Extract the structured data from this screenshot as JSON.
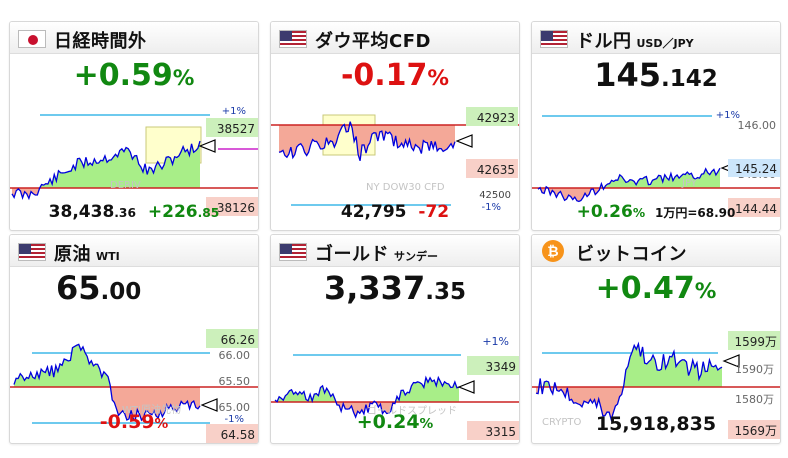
{
  "colors": {
    "up": "#118811",
    "down": "#dd1111",
    "line": "#0000dd",
    "fill_up": "#a8ee88",
    "fill_down": "#f4a898",
    "baseline": "#cc2222",
    "band": "#3fb8e8",
    "tag_green": "#ccf0bb",
    "tag_pink": "#f8d0c8",
    "tag_blue": "#cce6fb",
    "magenta_marker": "#cc22cc",
    "highlight_box": "#ffffcc"
  },
  "cards": [
    {
      "id": "nikkei",
      "title": "日経時間外",
      "subtitle": "",
      "flag_icon": "japan-flag-icon",
      "big": {
        "main": "+0.59",
        "unit": "%"
      },
      "price": {
        "main": "38,438",
        "dec": ".36"
      },
      "change": {
        "main": "+226",
        "dec": ".85"
      },
      "labels": {
        "band_pct": "+1%",
        "upper": "38527",
        "lower": "38126",
        "watermark": "DERIV"
      }
    },
    {
      "id": "dow",
      "title": "ダウ平均CFD",
      "subtitle": "",
      "flag_icon": "us-flag-icon",
      "big": {
        "main": "-0.17",
        "unit": "%"
      },
      "price": {
        "main": "42,795"
      },
      "change": {
        "main": "-72"
      },
      "labels": {
        "upper": "42923",
        "lower": "42635",
        "band_value": "42500",
        "band_pct": "-1%",
        "watermark": "NY DOW30 CFD"
      }
    },
    {
      "id": "usdjpy",
      "title": "ドル円",
      "subtitle": "USD／JPY",
      "flag_icon": "us-flag-icon",
      "big": {
        "main": "145",
        "dec": ".142"
      },
      "pct": {
        "main": "+0.26",
        "unit": "%"
      },
      "note": "1万円=68.90",
      "labels": {
        "band_pct": "+1%",
        "top_value": "146.00",
        "upper": "145.24",
        "band_value": "145.00",
        "lower": "144.44",
        "watermark": "JPY"
      }
    },
    {
      "id": "oil",
      "title": "原油",
      "subtitle": "WTI",
      "flag_icon": "us-flag-icon",
      "big": {
        "main": "65",
        "dec": ".00"
      },
      "pct": {
        "main": "-0.59",
        "unit": "%"
      },
      "labels": {
        "upper": "66.26",
        "top_value": "66.00",
        "mid_value": "65.50",
        "band_value": "65.00",
        "band_pct": "-1%",
        "lower": "64.58",
        "watermark": "WTI原油先物"
      }
    },
    {
      "id": "gold",
      "title": "ゴールド",
      "subtitle": "サンデー",
      "flag_icon": "us-flag-icon",
      "big": {
        "main": "3,337",
        "dec": ".35"
      },
      "pct": {
        "main": "+0.24",
        "unit": "%"
      },
      "labels": {
        "band_pct": "+1%",
        "upper": "3349",
        "lower": "3315",
        "watermark": "ゴールドスプレッド"
      }
    },
    {
      "id": "bitcoin",
      "title": "ビットコイン",
      "subtitle": "",
      "coin_icon": "bitcoin-icon",
      "big": {
        "main": "+0.47",
        "unit": "%"
      },
      "price": {
        "main": "15,918,835"
      },
      "labels": {
        "top_value": "1599万",
        "upper": "1590万",
        "mid_value": "1580万",
        "lower": "1569万",
        "watermark": "CRYPTO"
      }
    }
  ]
}
